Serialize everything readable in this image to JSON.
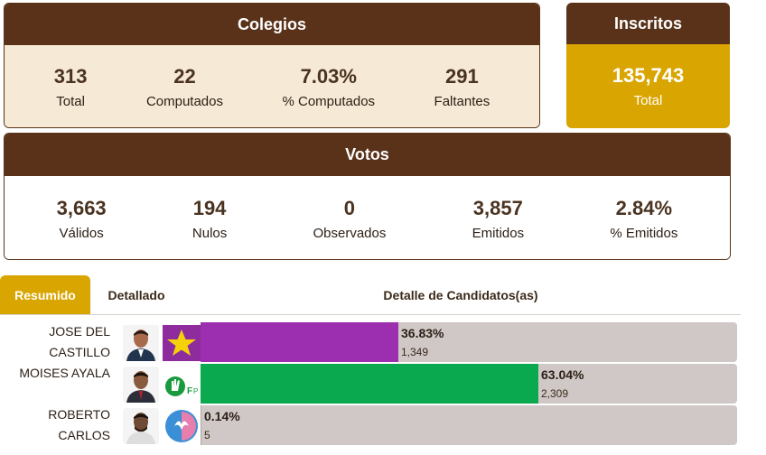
{
  "colegios": {
    "title": "Colegios",
    "stats": [
      {
        "value": "313",
        "label": "Total"
      },
      {
        "value": "22",
        "label": "Computados"
      },
      {
        "value": "7.03%",
        "label": "% Computados"
      },
      {
        "value": "291",
        "label": "Faltantes"
      }
    ]
  },
  "inscritos": {
    "title": "Inscritos",
    "value": "135,743",
    "label": "Total"
  },
  "votos": {
    "title": "Votos",
    "stats": [
      {
        "value": "3,663",
        "label": "Válidos"
      },
      {
        "value": "194",
        "label": "Nulos"
      },
      {
        "value": "0",
        "label": "Observados"
      },
      {
        "value": "3,857",
        "label": "Emitidos"
      },
      {
        "value": "2.84%",
        "label": "% Emitidos"
      }
    ]
  },
  "tabs": {
    "active": "Resumido",
    "inactive": "Detallado",
    "title": "Detalle de Candidatos(as)"
  },
  "candidates": [
    {
      "name_line1": "JOSE DEL",
      "name_line2": "CASTILLO",
      "pct": "36.83%",
      "votes": "1,349",
      "share": 0.3683,
      "color": "#9b2fb0",
      "logo": "star-party-logo",
      "photo": "candidate-photo"
    },
    {
      "name_line1": "MOISES AYALA",
      "name_line2": "",
      "pct": "63.04%",
      "votes": "2,309",
      "share": 0.6304,
      "color": "#0aa84f",
      "logo": "hand-party-logo",
      "photo": "candidate-photo"
    },
    {
      "name_line1": "ROBERTO",
      "name_line2": "CARLOS",
      "pct": "0.14%",
      "votes": "5",
      "share": 0.0014,
      "color": "#b0a8a6",
      "logo": "bird-party-logo",
      "photo": "candidate-photo"
    }
  ]
}
